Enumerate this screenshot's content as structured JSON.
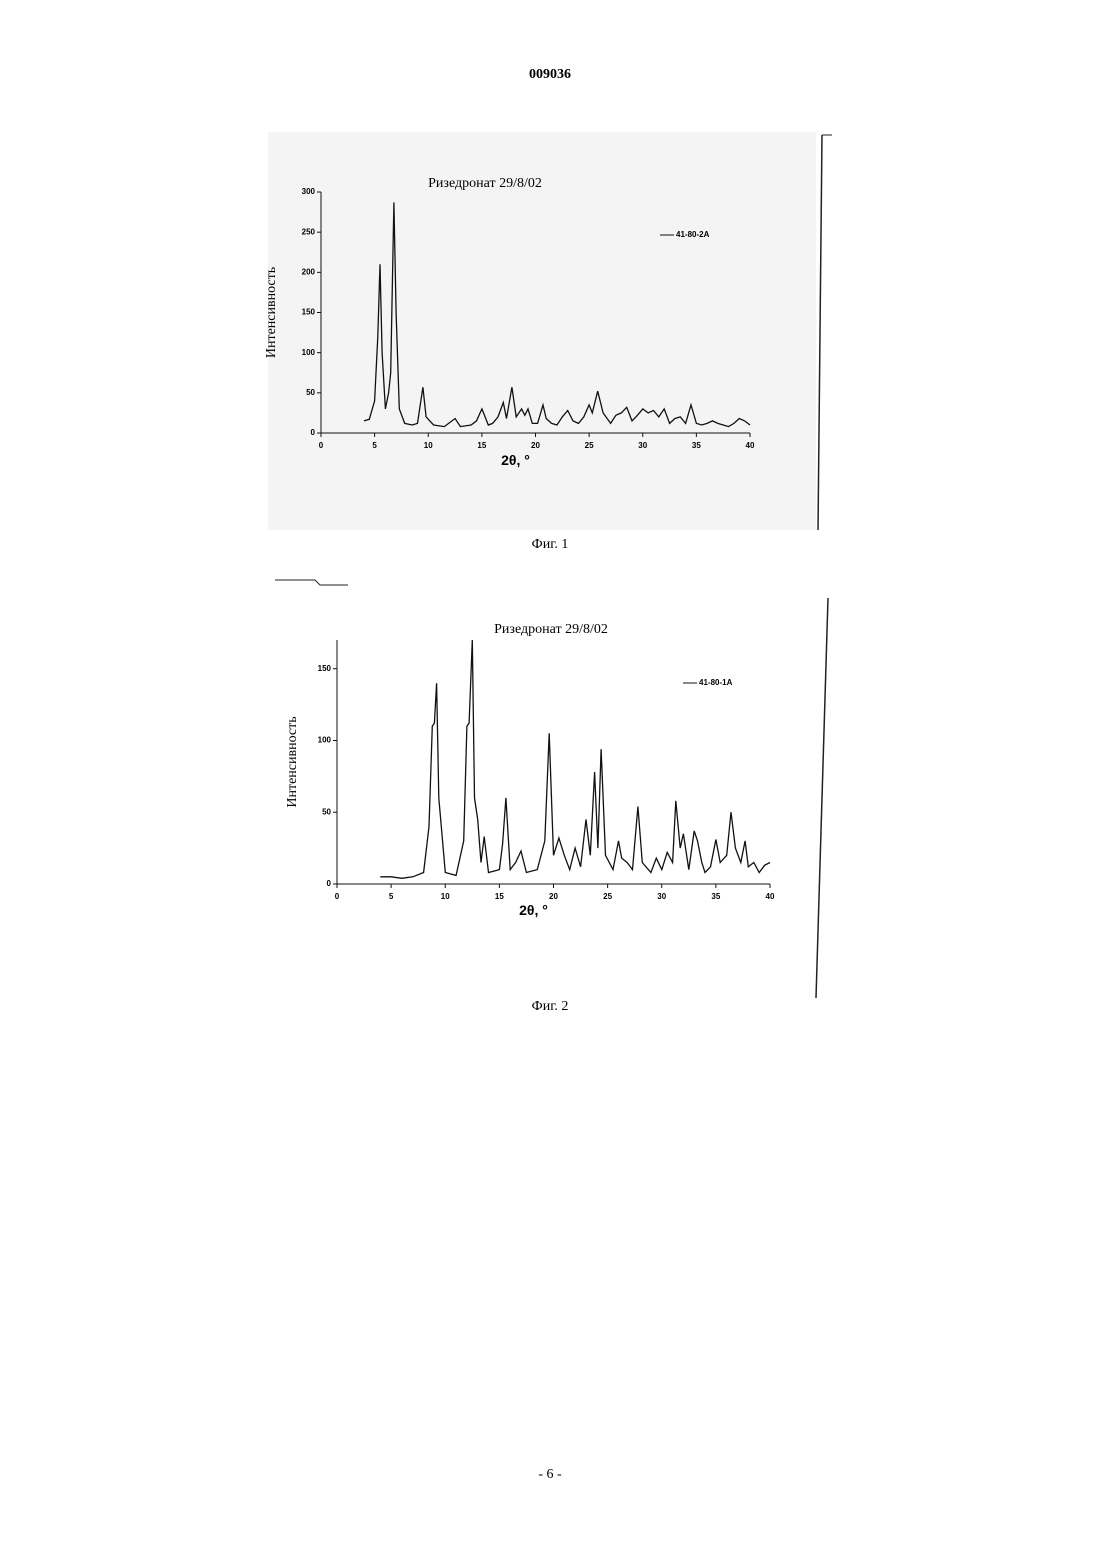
{
  "header": "009036",
  "footer": "- 6 -",
  "chart_data": [
    {
      "type": "line",
      "title": "Ризедронат 29/8/02",
      "caption": "Фиг. 1",
      "x_label": "2θ, °",
      "y_label": "Интенсивность",
      "xlim": [
        0,
        40
      ],
      "xticks": [
        0,
        5,
        10,
        15,
        20,
        25,
        30,
        35,
        40
      ],
      "ylim": [
        0,
        300
      ],
      "yticks": [
        0,
        50,
        100,
        150,
        200,
        250,
        300
      ],
      "x": [
        4,
        4.5,
        5,
        5.3,
        5.5,
        5.7,
        6,
        6.3,
        6.5,
        6.8,
        7.0,
        7.3,
        7.8,
        8.5,
        9,
        9.5,
        9.8,
        10.5,
        11.5,
        12.5,
        13,
        14,
        14.5,
        15,
        15.3,
        15.6,
        16,
        16.5,
        17,
        17.3,
        17.8,
        18.2,
        18.7,
        19,
        19.3,
        19.7,
        20.2,
        20.7,
        21,
        21.5,
        22,
        22.5,
        23,
        23.5,
        24,
        24.5,
        25,
        25.3,
        25.8,
        26.3,
        27,
        27.5,
        28,
        28.5,
        29,
        29.5,
        30,
        30.5,
        31,
        31.5,
        32,
        32.5,
        33,
        33.5,
        34,
        34.5,
        35,
        35.5,
        36,
        36.5,
        37,
        37.5,
        38,
        38.5,
        39,
        39.5,
        40
      ],
      "series": [
        {
          "name": "41-80-2A",
          "color": "#111111",
          "values": [
            15,
            17,
            40,
            120,
            210,
            100,
            30,
            50,
            75,
            287,
            150,
            30,
            12,
            10,
            12,
            57,
            20,
            10,
            8,
            18,
            8,
            10,
            15,
            30,
            20,
            10,
            12,
            20,
            38,
            18,
            57,
            20,
            30,
            22,
            30,
            12,
            12,
            35,
            18,
            12,
            10,
            20,
            28,
            15,
            12,
            20,
            35,
            25,
            52,
            25,
            12,
            22,
            25,
            32,
            15,
            22,
            30,
            25,
            28,
            20,
            30,
            12,
            18,
            20,
            12,
            35,
            12,
            10,
            12,
            15,
            12,
            10,
            8,
            12,
            18,
            15,
            10
          ]
        }
      ]
    },
    {
      "type": "line",
      "title": "Ризедронат 29/8/02",
      "caption": "Фиг. 2",
      "x_label": "2θ, °",
      "y_label": "Интенсивность",
      "xlim": [
        0,
        40
      ],
      "xticks": [
        0,
        5,
        10,
        15,
        20,
        25,
        30,
        35,
        40
      ],
      "ylim": [
        0,
        170
      ],
      "yticks": [
        0,
        50,
        100,
        150
      ],
      "x": [
        4,
        5,
        6,
        7,
        8,
        8.5,
        8.8,
        9.0,
        9.2,
        9.4,
        10,
        11,
        11.7,
        12,
        12.2,
        12.5,
        12.7,
        13,
        13.3,
        13.6,
        14,
        15,
        15.3,
        15.6,
        16,
        16.5,
        17,
        17.5,
        18.5,
        19.2,
        19.6,
        20,
        20.5,
        21,
        21.5,
        22,
        22.5,
        23,
        23.4,
        23.8,
        24.1,
        24.4,
        24.8,
        25.5,
        26,
        26.3,
        26.8,
        27.3,
        27.8,
        28.2,
        29,
        29.5,
        30,
        30.5,
        31,
        31.3,
        31.7,
        32,
        32.5,
        33,
        33.3,
        33.7,
        34,
        34.5,
        35,
        35.4,
        36,
        36.4,
        36.8,
        37.3,
        37.7,
        38,
        38.5,
        39,
        39.5,
        40
      ],
      "series": [
        {
          "name": "41-80-1A",
          "color": "#111111",
          "values": [
            5,
            5,
            4,
            5,
            8,
            40,
            110,
            112,
            140,
            60,
            8,
            6,
            30,
            110,
            112,
            170,
            60,
            45,
            15,
            33,
            8,
            10,
            28,
            60,
            10,
            15,
            23,
            8,
            10,
            30,
            105,
            20,
            32,
            20,
            10,
            25,
            12,
            45,
            20,
            78,
            25,
            94,
            20,
            10,
            30,
            18,
            15,
            10,
            54,
            15,
            8,
            18,
            10,
            22,
            15,
            58,
            25,
            35,
            10,
            37,
            30,
            15,
            8,
            12,
            31,
            15,
            20,
            50,
            25,
            15,
            30,
            12,
            15,
            8,
            13,
            15
          ]
        }
      ]
    }
  ]
}
